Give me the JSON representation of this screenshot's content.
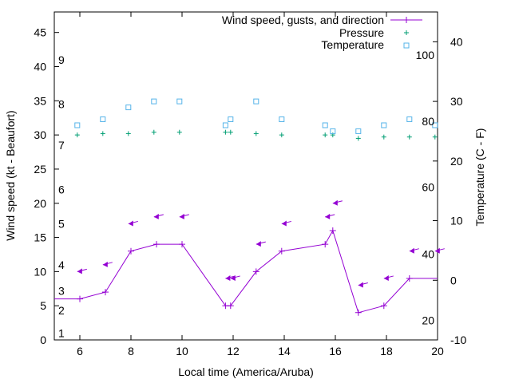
{
  "chart_data": {
    "type": "line",
    "xlabel": "Local time (America/Aruba)",
    "ylabel": "Wind speed (kt - Beaufort)",
    "y2label": "Temperature (C - F)",
    "xlim": [
      5,
      20
    ],
    "ylim": [
      0,
      48
    ],
    "y2lim": [
      -10,
      45
    ],
    "grid": false,
    "legend_position": "top-right",
    "x_ticks": [
      6,
      8,
      10,
      12,
      14,
      16,
      18,
      20
    ],
    "y_ticks": [
      0,
      5,
      10,
      15,
      20,
      25,
      30,
      35,
      40,
      45
    ],
    "y2_ticks": [
      -10,
      0,
      10,
      20,
      30,
      40
    ],
    "beaufort_labels": [
      {
        "label": "1",
        "y": 1
      },
      {
        "label": "2",
        "y": 4.3
      },
      {
        "label": "3",
        "y": 7.2
      },
      {
        "label": "4",
        "y": 11
      },
      {
        "label": "5",
        "y": 17
      },
      {
        "label": "6",
        "y": 22
      },
      {
        "label": "7",
        "y": 28.5
      },
      {
        "label": "8",
        "y": 34.5
      },
      {
        "label": "9",
        "y": 41
      }
    ],
    "fahrenheit_labels": [
      {
        "label": "20",
        "y2": -6.7
      },
      {
        "label": "40",
        "y2": 4.4
      },
      {
        "label": "60",
        "y2": 15.6
      },
      {
        "label": "80",
        "y2": 26.7
      },
      {
        "label": "100",
        "y2": 37.8
      }
    ],
    "series": [
      {
        "name": "Wind speed, gusts, and direction",
        "color": "#9400d3",
        "x": [
          5,
          6,
          7,
          8,
          9,
          10,
          11.7,
          11.9,
          12.9,
          13.9,
          15.6,
          15.9,
          16.9,
          17.9,
          18.9,
          20
        ],
        "y": [
          6,
          6,
          7,
          13,
          14,
          14,
          5,
          5,
          10,
          13,
          14,
          16,
          4,
          5,
          9,
          9
        ]
      },
      {
        "name": "gusts",
        "color": "#9400d3",
        "x": [
          5.9,
          6.9,
          7.9,
          8.9,
          9.9,
          11.7,
          11.9,
          12.9,
          13.9,
          15.6,
          15.9,
          16.9,
          17.9,
          18.9,
          19.9
        ],
        "y": [
          10,
          11,
          17,
          18,
          18,
          9,
          9,
          14,
          17,
          18,
          20,
          8,
          9,
          13,
          13
        ]
      },
      {
        "name": "Pressure",
        "color": "#009e73",
        "x": [
          5.9,
          6.9,
          7.9,
          8.9,
          9.9,
          11.7,
          11.9,
          12.9,
          13.9,
          15.6,
          15.9,
          16.9,
          17.9,
          18.9,
          19.9
        ],
        "y": [
          30,
          30.2,
          30.2,
          30.4,
          30.4,
          30.4,
          30.4,
          30.2,
          30,
          30,
          30,
          29.5,
          29.7,
          29.7,
          29.7
        ]
      },
      {
        "name": "Temperature",
        "color": "#56b4e9",
        "x": [
          5.9,
          6.9,
          7.9,
          8.9,
          9.9,
          11.7,
          11.9,
          12.9,
          13.9,
          15.6,
          15.9,
          16.9,
          17.9,
          18.9,
          19.9
        ],
        "y2": [
          26,
          27,
          29,
          30,
          30,
          26,
          27,
          30,
          27,
          26,
          25,
          25,
          26,
          27,
          26
        ]
      }
    ]
  }
}
